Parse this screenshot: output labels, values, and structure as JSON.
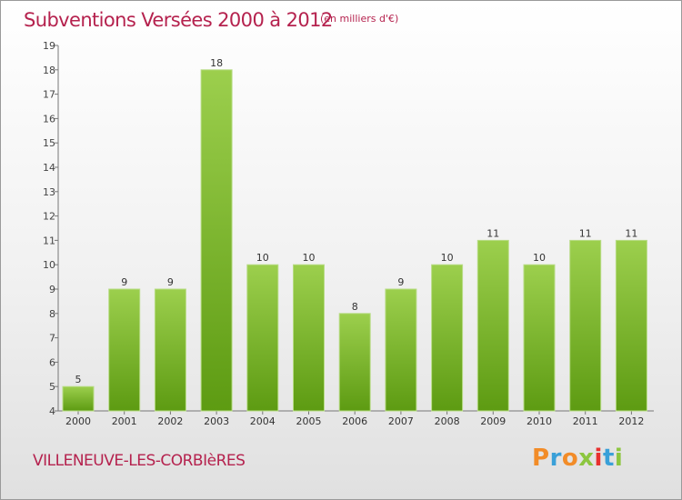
{
  "header": {
    "title": "Subventions Versées 2000 à 2012",
    "subtitle": "(en milliers d'€)"
  },
  "footer": {
    "place": "VILLENEUVE-LES-CORBIèRES",
    "logo_text": "Proxiti",
    "logo_colors": [
      "#f28c28",
      "#3aa0d8",
      "#f28c28",
      "#8cc63f",
      "#e8312f",
      "#3aa0d8",
      "#8cc63f"
    ]
  },
  "colors": {
    "bar_top": "#9ccf4d",
    "bar_bottom": "#5d9b12",
    "title": "#b5224e"
  },
  "chart_data": {
    "type": "bar",
    "title": "Subventions Versées 2000 à 2012",
    "subtitle": "(en milliers d'€)",
    "categories": [
      "2000",
      "2001",
      "2002",
      "2003",
      "2004",
      "2005",
      "2006",
      "2007",
      "2008",
      "2009",
      "2010",
      "2011",
      "2012"
    ],
    "values": [
      5,
      9,
      9,
      18,
      10,
      10,
      8,
      9,
      10,
      11,
      10,
      11,
      11
    ],
    "ylim": [
      4,
      19
    ],
    "yticks": [
      4,
      5,
      6,
      7,
      8,
      9,
      10,
      11,
      12,
      13,
      14,
      15,
      16,
      17,
      18,
      19
    ],
    "grid": false,
    "data_labels": true
  }
}
